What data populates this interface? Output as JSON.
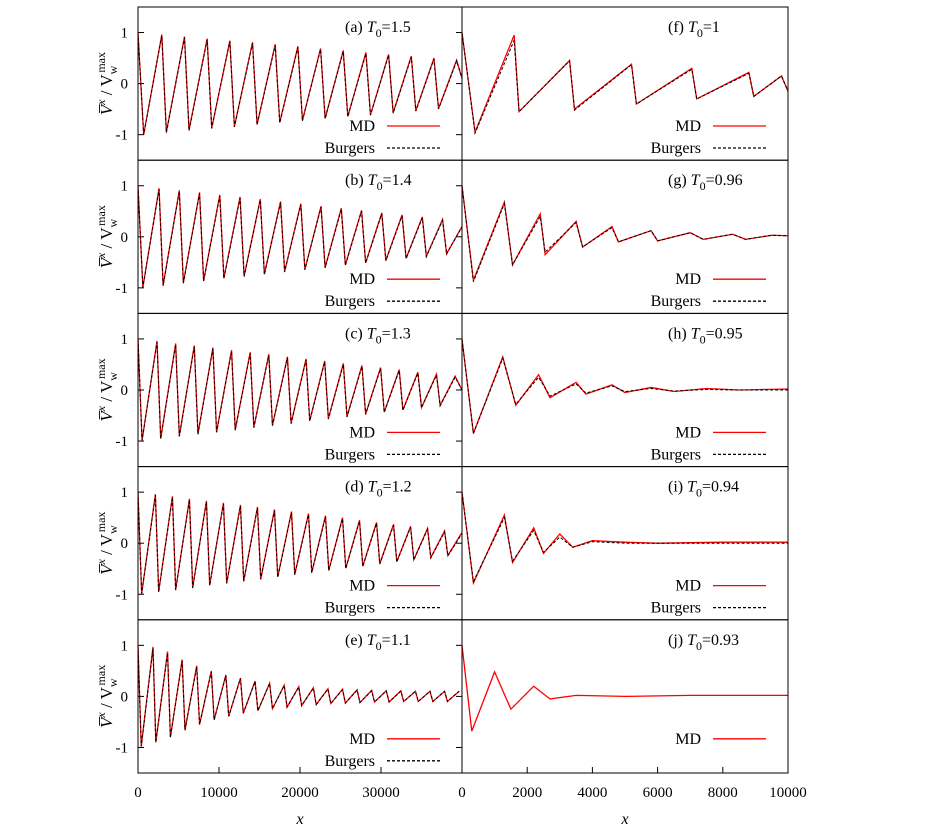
{
  "chart_data": [
    {
      "type": "line",
      "title_parts": [
        "(a) ",
        "T",
        "0",
        "=1.5"
      ],
      "ylabel_parts": [
        "V̅",
        "x",
        " / V",
        "w",
        "max"
      ],
      "xlim": [
        0,
        40000
      ],
      "ylim": [
        -1.5,
        1.5
      ],
      "yticks": [
        -1,
        0,
        1
      ],
      "x": [
        0,
        700,
        2940,
        3500,
        5740,
        6300,
        8540,
        9100,
        11340,
        11900,
        14140,
        14700,
        16940,
        17500,
        19740,
        20300,
        22540,
        23100,
        25340,
        25900,
        28140,
        28700,
        30940,
        31500,
        33740,
        34300,
        36540,
        37100,
        39340,
        40000
      ],
      "series": [
        {
          "name": "MD",
          "color": "#ff0000",
          "style": "solid",
          "values": [
            1,
            -1,
            0.96,
            -0.95,
            0.92,
            -0.91,
            0.88,
            -0.87,
            0.84,
            -0.84,
            0.81,
            -0.8,
            0.77,
            -0.76,
            0.73,
            -0.72,
            0.69,
            -0.68,
            0.65,
            -0.64,
            0.61,
            -0.61,
            0.57,
            -0.57,
            0.54,
            -0.53,
            0.5,
            -0.49,
            0.46,
            0.1
          ]
        },
        {
          "name": "Burgers",
          "color": "#000000",
          "style": "dashed",
          "values": [
            1,
            -1,
            0.94,
            -0.96,
            0.9,
            -0.92,
            0.86,
            -0.88,
            0.83,
            -0.85,
            0.79,
            -0.81,
            0.75,
            -0.77,
            0.71,
            -0.73,
            0.67,
            -0.69,
            0.63,
            -0.65,
            0.59,
            -0.62,
            0.56,
            -0.58,
            0.52,
            -0.54,
            0.48,
            -0.5,
            0.44,
            0.1
          ]
        }
      ]
    },
    {
      "type": "line",
      "title_parts": [
        "(b) ",
        "T",
        "0",
        "=1.4"
      ],
      "ylabel_parts": [
        "V̅",
        "x",
        " / V",
        "w",
        "max"
      ],
      "xlim": [
        0,
        40000
      ],
      "ylim": [
        -1.5,
        1.5
      ],
      "yticks": [
        -1,
        0,
        1
      ],
      "x": [
        0,
        600,
        2600,
        3100,
        5100,
        5600,
        7600,
        8100,
        10100,
        10600,
        12600,
        13100,
        15100,
        15600,
        17600,
        18100,
        20100,
        20600,
        22600,
        23100,
        25100,
        25600,
        27600,
        28100,
        30100,
        30600,
        32600,
        33100,
        35100,
        35600,
        37600,
        38100,
        40000
      ],
      "series": [
        {
          "name": "MD",
          "color": "#ff0000",
          "style": "solid",
          "values": [
            1,
            -0.99,
            0.95,
            -0.95,
            0.91,
            -0.9,
            0.87,
            -0.86,
            0.82,
            -0.81,
            0.78,
            -0.77,
            0.74,
            -0.73,
            0.69,
            -0.68,
            0.65,
            -0.64,
            0.6,
            -0.6,
            0.56,
            -0.55,
            0.52,
            -0.51,
            0.47,
            -0.46,
            0.43,
            -0.42,
            0.39,
            -0.38,
            0.34,
            -0.33,
            0.2
          ]
        },
        {
          "name": "Burgers",
          "color": "#000000",
          "style": "dashed",
          "values": [
            1,
            -0.99,
            0.93,
            -0.96,
            0.89,
            -0.91,
            0.85,
            -0.87,
            0.8,
            -0.82,
            0.76,
            -0.78,
            0.72,
            -0.74,
            0.67,
            -0.69,
            0.63,
            -0.65,
            0.58,
            -0.61,
            0.54,
            -0.56,
            0.5,
            -0.52,
            0.45,
            -0.47,
            0.41,
            -0.43,
            0.37,
            -0.39,
            0.32,
            -0.34,
            0.2
          ]
        }
      ]
    },
    {
      "type": "line",
      "title_parts": [
        "(c) ",
        "T",
        "0",
        "=1.3"
      ],
      "ylabel_parts": [
        "V̅",
        "x",
        " / V",
        "w",
        "max"
      ],
      "xlim": [
        0,
        40000
      ],
      "ylim": [
        -1.5,
        1.5
      ],
      "yticks": [
        -1,
        0,
        1
      ],
      "x": [
        0,
        500,
        2350,
        2800,
        4650,
        5100,
        6950,
        7400,
        9250,
        9700,
        11550,
        12000,
        13850,
        14300,
        16150,
        16600,
        18450,
        18900,
        20750,
        21200,
        23050,
        23500,
        25350,
        25800,
        27650,
        28100,
        29950,
        30400,
        32250,
        32700,
        34550,
        35000,
        36850,
        37300,
        39150,
        40000
      ],
      "series": [
        {
          "name": "MD",
          "color": "#ff0000",
          "style": "solid",
          "values": [
            1,
            -0.99,
            0.96,
            -0.95,
            0.91,
            -0.9,
            0.87,
            -0.86,
            0.83,
            -0.82,
            0.78,
            -0.78,
            0.74,
            -0.73,
            0.7,
            -0.69,
            0.65,
            -0.65,
            0.61,
            -0.6,
            0.57,
            -0.56,
            0.52,
            -0.52,
            0.48,
            -0.47,
            0.44,
            -0.43,
            0.4,
            -0.39,
            0.35,
            -0.34,
            0.31,
            -0.3,
            0.27,
            0
          ]
        },
        {
          "name": "Burgers",
          "color": "#000000",
          "style": "dashed",
          "values": [
            1,
            -0.99,
            0.94,
            -0.96,
            0.89,
            -0.91,
            0.85,
            -0.87,
            0.81,
            -0.83,
            0.76,
            -0.79,
            0.72,
            -0.74,
            0.68,
            -0.7,
            0.63,
            -0.66,
            0.59,
            -0.61,
            0.55,
            -0.57,
            0.5,
            -0.53,
            0.46,
            -0.48,
            0.42,
            -0.44,
            0.38,
            -0.4,
            0.33,
            -0.35,
            0.29,
            -0.31,
            0.25,
            0
          ]
        }
      ]
    },
    {
      "type": "line",
      "title_parts": [
        "(d) ",
        "T",
        "0",
        "=1.2"
      ],
      "ylabel_parts": [
        "V̅",
        "x",
        " / V",
        "w",
        "max"
      ],
      "xlim": [
        0,
        40000
      ],
      "ylim": [
        -1.5,
        1.5
      ],
      "yticks": [
        -1,
        0,
        1
      ],
      "x": [
        0,
        450,
        2150,
        2550,
        4250,
        4650,
        6350,
        6750,
        8450,
        8850,
        10550,
        10950,
        12650,
        13050,
        14750,
        15150,
        16850,
        17250,
        18950,
        19350,
        21050,
        21450,
        23150,
        23550,
        25250,
        25650,
        27350,
        27750,
        29450,
        29850,
        31550,
        31950,
        33650,
        34050,
        35750,
        36150,
        37850,
        38250,
        39950
      ],
      "series": [
        {
          "name": "MD",
          "color": "#ff0000",
          "style": "solid",
          "values": [
            1,
            -0.99,
            0.96,
            -0.95,
            0.92,
            -0.91,
            0.87,
            -0.87,
            0.83,
            -0.82,
            0.79,
            -0.78,
            0.75,
            -0.74,
            0.71,
            -0.7,
            0.66,
            -0.66,
            0.62,
            -0.61,
            0.58,
            -0.57,
            0.54,
            -0.53,
            0.5,
            -0.49,
            0.45,
            -0.45,
            0.41,
            -0.4,
            0.37,
            -0.36,
            0.33,
            -0.32,
            0.29,
            -0.28,
            0.24,
            -0.24,
            0.2
          ]
        },
        {
          "name": "Burgers",
          "color": "#000000",
          "style": "dashed",
          "values": [
            1,
            -0.99,
            0.94,
            -0.96,
            0.9,
            -0.92,
            0.85,
            -0.88,
            0.81,
            -0.83,
            0.77,
            -0.79,
            0.73,
            -0.75,
            0.69,
            -0.71,
            0.64,
            -0.67,
            0.6,
            -0.62,
            0.56,
            -0.58,
            0.52,
            -0.54,
            0.48,
            -0.5,
            0.43,
            -0.46,
            0.39,
            -0.41,
            0.35,
            -0.37,
            0.31,
            -0.33,
            0.27,
            -0.29,
            0.22,
            -0.25,
            0.18
          ]
        }
      ]
    },
    {
      "type": "line",
      "title_parts": [
        "(e) ",
        "T",
        "0",
        "=1.1"
      ],
      "ylabel_parts": [
        "V̅",
        "x",
        " / V",
        "w",
        "max"
      ],
      "xlabel": "x",
      "xlim": [
        0,
        40000
      ],
      "ylim": [
        -1.5,
        1.5
      ],
      "yticks": [
        -1,
        0,
        1
      ],
      "xticks": [
        0,
        10000,
        20000,
        30000
      ],
      "x": [
        0,
        400,
        1850,
        2200,
        3650,
        4000,
        5450,
        5800,
        7250,
        7600,
        9050,
        9400,
        10850,
        11200,
        12650,
        13000,
        14450,
        14800,
        16250,
        16600,
        18050,
        18400,
        19850,
        20200,
        21650,
        22000,
        23450,
        23800,
        25250,
        25600,
        27050,
        27400,
        28850,
        29200,
        30650,
        31000,
        32450,
        32800,
        34250,
        34600,
        36050,
        36400,
        37850,
        38200,
        39650
      ],
      "series": [
        {
          "name": "MD",
          "color": "#ff0000",
          "style": "solid",
          "values": [
            1,
            -0.98,
            0.97,
            -0.9,
            0.88,
            -0.8,
            0.72,
            -0.66,
            0.6,
            -0.55,
            0.5,
            -0.46,
            0.42,
            -0.39,
            0.36,
            -0.33,
            0.3,
            -0.28,
            0.26,
            -0.24,
            0.22,
            -0.21,
            0.19,
            -0.18,
            0.17,
            -0.16,
            0.15,
            -0.14,
            0.14,
            -0.13,
            0.13,
            -0.12,
            0.12,
            -0.11,
            0.11,
            -0.11,
            0.11,
            -0.1,
            0.1,
            -0.1,
            0.1,
            -0.1,
            0.1,
            -0.1,
            0.1
          ]
        },
        {
          "name": "Burgers",
          "color": "#000000",
          "style": "dashed",
          "values": [
            1,
            -0.98,
            0.94,
            -0.9,
            0.85,
            -0.8,
            0.7,
            -0.66,
            0.58,
            -0.55,
            0.48,
            -0.46,
            0.41,
            -0.39,
            0.35,
            -0.33,
            0.29,
            -0.28,
            0.25,
            -0.24,
            0.21,
            -0.21,
            0.18,
            -0.18,
            0.16,
            -0.16,
            0.14,
            -0.14,
            0.13,
            -0.13,
            0.12,
            -0.12,
            0.11,
            -0.11,
            0.11,
            -0.11,
            0.1,
            -0.1,
            0.1,
            -0.1,
            0.1,
            -0.1,
            0.1,
            -0.1,
            0.1
          ]
        }
      ]
    },
    {
      "type": "line",
      "title_parts": [
        "(f) ",
        "T",
        "0",
        "=1"
      ],
      "xlim": [
        0,
        10000
      ],
      "ylim": [
        -1.5,
        1.5
      ],
      "x": [
        0,
        400,
        1600,
        1750,
        3300,
        3450,
        5200,
        5350,
        7050,
        7200,
        8800,
        8950,
        9800,
        10000
      ],
      "series": [
        {
          "name": "MD",
          "color": "#ff0000",
          "style": "solid",
          "values": [
            1,
            -0.95,
            0.95,
            -0.55,
            0.45,
            -0.5,
            0.38,
            -0.4,
            0.3,
            -0.3,
            0.22,
            -0.25,
            0.15,
            -0.15
          ]
        },
        {
          "name": "Burgers",
          "color": "#000000",
          "style": "dashed",
          "values": [
            1,
            -0.97,
            0.85,
            -0.55,
            0.45,
            -0.52,
            0.37,
            -0.4,
            0.28,
            -0.3,
            0.2,
            -0.25,
            0.15,
            -0.15
          ]
        }
      ]
    },
    {
      "type": "line",
      "title_parts": [
        "(g) ",
        "T",
        "0",
        "=0.96"
      ],
      "xlim": [
        0,
        10000
      ],
      "ylim": [
        -1.5,
        1.5
      ],
      "x": [
        0,
        350,
        1300,
        1550,
        2400,
        2550,
        3500,
        3700,
        4600,
        4800,
        5800,
        6000,
        7000,
        7400,
        8300,
        8700,
        9500,
        10000
      ],
      "series": [
        {
          "name": "MD",
          "color": "#ff0000",
          "style": "solid",
          "values": [
            1,
            -0.85,
            0.68,
            -0.55,
            0.45,
            -0.35,
            0.3,
            -0.2,
            0.2,
            -0.1,
            0.12,
            -0.08,
            0.08,
            -0.05,
            0.05,
            -0.05,
            0.03,
            0.02
          ]
        },
        {
          "name": "Burgers",
          "color": "#000000",
          "style": "dashed",
          "values": [
            1,
            -0.88,
            0.65,
            -0.55,
            0.4,
            -0.3,
            0.28,
            -0.2,
            0.18,
            -0.1,
            0.12,
            -0.08,
            0.08,
            -0.05,
            0.05,
            -0.05,
            0.03,
            0.02
          ]
        }
      ]
    },
    {
      "type": "line",
      "title_parts": [
        "(h) ",
        "T",
        "0",
        "=0.95"
      ],
      "xlim": [
        0,
        10000
      ],
      "ylim": [
        -1.5,
        1.5
      ],
      "x": [
        0,
        350,
        1250,
        1650,
        2350,
        2700,
        3500,
        3800,
        4600,
        5000,
        5800,
        6500,
        7500,
        8500,
        10000
      ],
      "series": [
        {
          "name": "MD",
          "color": "#ff0000",
          "style": "solid",
          "values": [
            1,
            -0.85,
            0.65,
            -0.3,
            0.3,
            -0.15,
            0.15,
            -0.08,
            0.1,
            -0.05,
            0.05,
            -0.03,
            0.03,
            0,
            0.02
          ]
        },
        {
          "name": "Burgers",
          "color": "#000000",
          "style": "dashed",
          "values": [
            1,
            -0.85,
            0.62,
            -0.28,
            0.25,
            -0.12,
            0.12,
            -0.06,
            0.08,
            -0.03,
            0.03,
            -0.02,
            0.01,
            0,
            0
          ]
        }
      ]
    },
    {
      "type": "line",
      "title_parts": [
        "(i) ",
        "T",
        "0",
        "=0.94"
      ],
      "xlim": [
        0,
        10000
      ],
      "ylim": [
        -1.5,
        1.5
      ],
      "x": [
        0,
        350,
        1300,
        1550,
        2200,
        2500,
        3000,
        3400,
        4000,
        5000,
        6000,
        8000,
        10000
      ],
      "series": [
        {
          "name": "MD",
          "color": "#ff0000",
          "style": "solid",
          "values": [
            1,
            -0.78,
            0.55,
            -0.38,
            0.3,
            -0.2,
            0.18,
            -0.08,
            0.05,
            0.02,
            0,
            0.02,
            0.02
          ]
        },
        {
          "name": "Burgers",
          "color": "#000000",
          "style": "dashed",
          "values": [
            1,
            -0.75,
            0.5,
            -0.35,
            0.25,
            -0.18,
            0.12,
            -0.08,
            0.03,
            0,
            0,
            0,
            0
          ]
        }
      ]
    },
    {
      "type": "line",
      "title_parts": [
        "(j) ",
        "T",
        "0",
        "=0.93"
      ],
      "xlabel": "x",
      "xlim": [
        0,
        10000
      ],
      "ylim": [
        -1.5,
        1.5
      ],
      "xticks": [
        0,
        2000,
        4000,
        6000,
        8000,
        10000
      ],
      "x": [
        0,
        300,
        1000,
        1500,
        2200,
        2700,
        3500,
        5000,
        7000,
        10000
      ],
      "series": [
        {
          "name": "MD",
          "color": "#ff0000",
          "style": "solid",
          "values": [
            1,
            -0.68,
            0.48,
            -0.25,
            0.2,
            -0.05,
            0.02,
            0,
            0.02,
            0.02
          ]
        }
      ]
    }
  ]
}
